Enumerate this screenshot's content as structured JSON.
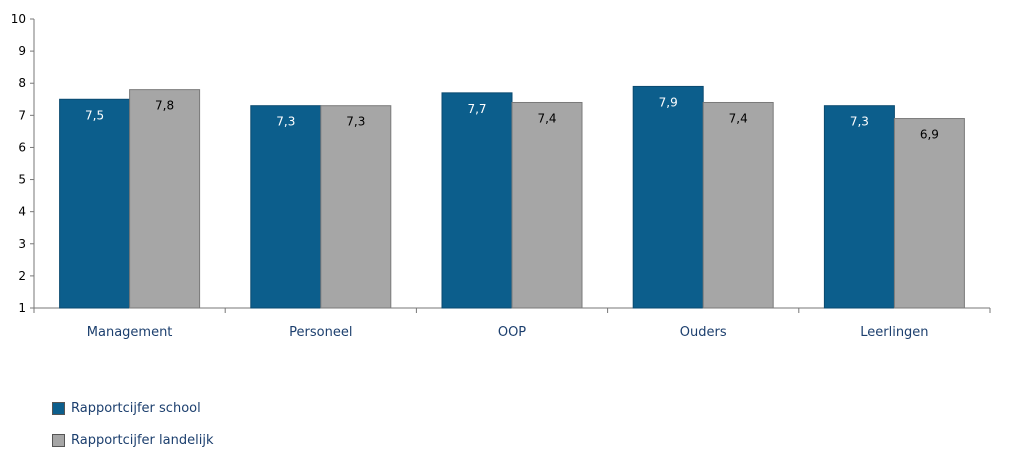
{
  "chart_data": {
    "type": "bar",
    "categories": [
      "Management",
      "Personeel",
      "OOP",
      "Ouders",
      "Leerlingen"
    ],
    "series": [
      {
        "name": "Rapportcijfer school",
        "values": [
          7.5,
          7.3,
          7.7,
          7.9,
          7.3
        ],
        "labels": [
          "7,5",
          "7,3",
          "7,7",
          "7,9",
          "7,3"
        ],
        "color": "#0c5e8c",
        "label_color": "#ffffff"
      },
      {
        "name": "Rapportcijfer landelijk",
        "values": [
          7.8,
          7.3,
          7.4,
          7.4,
          6.9
        ],
        "labels": [
          "7,8",
          "7,3",
          "7,4",
          "7,4",
          "6,9"
        ],
        "color": "#a6a6a6",
        "label_color": "#000000"
      }
    ],
    "yticks": [
      "1",
      "2",
      "3",
      "4",
      "5",
      "6",
      "7",
      "8",
      "9",
      "10"
    ],
    "ylim": [
      1,
      10
    ],
    "grid": false,
    "legend_position": "bottom-left"
  }
}
